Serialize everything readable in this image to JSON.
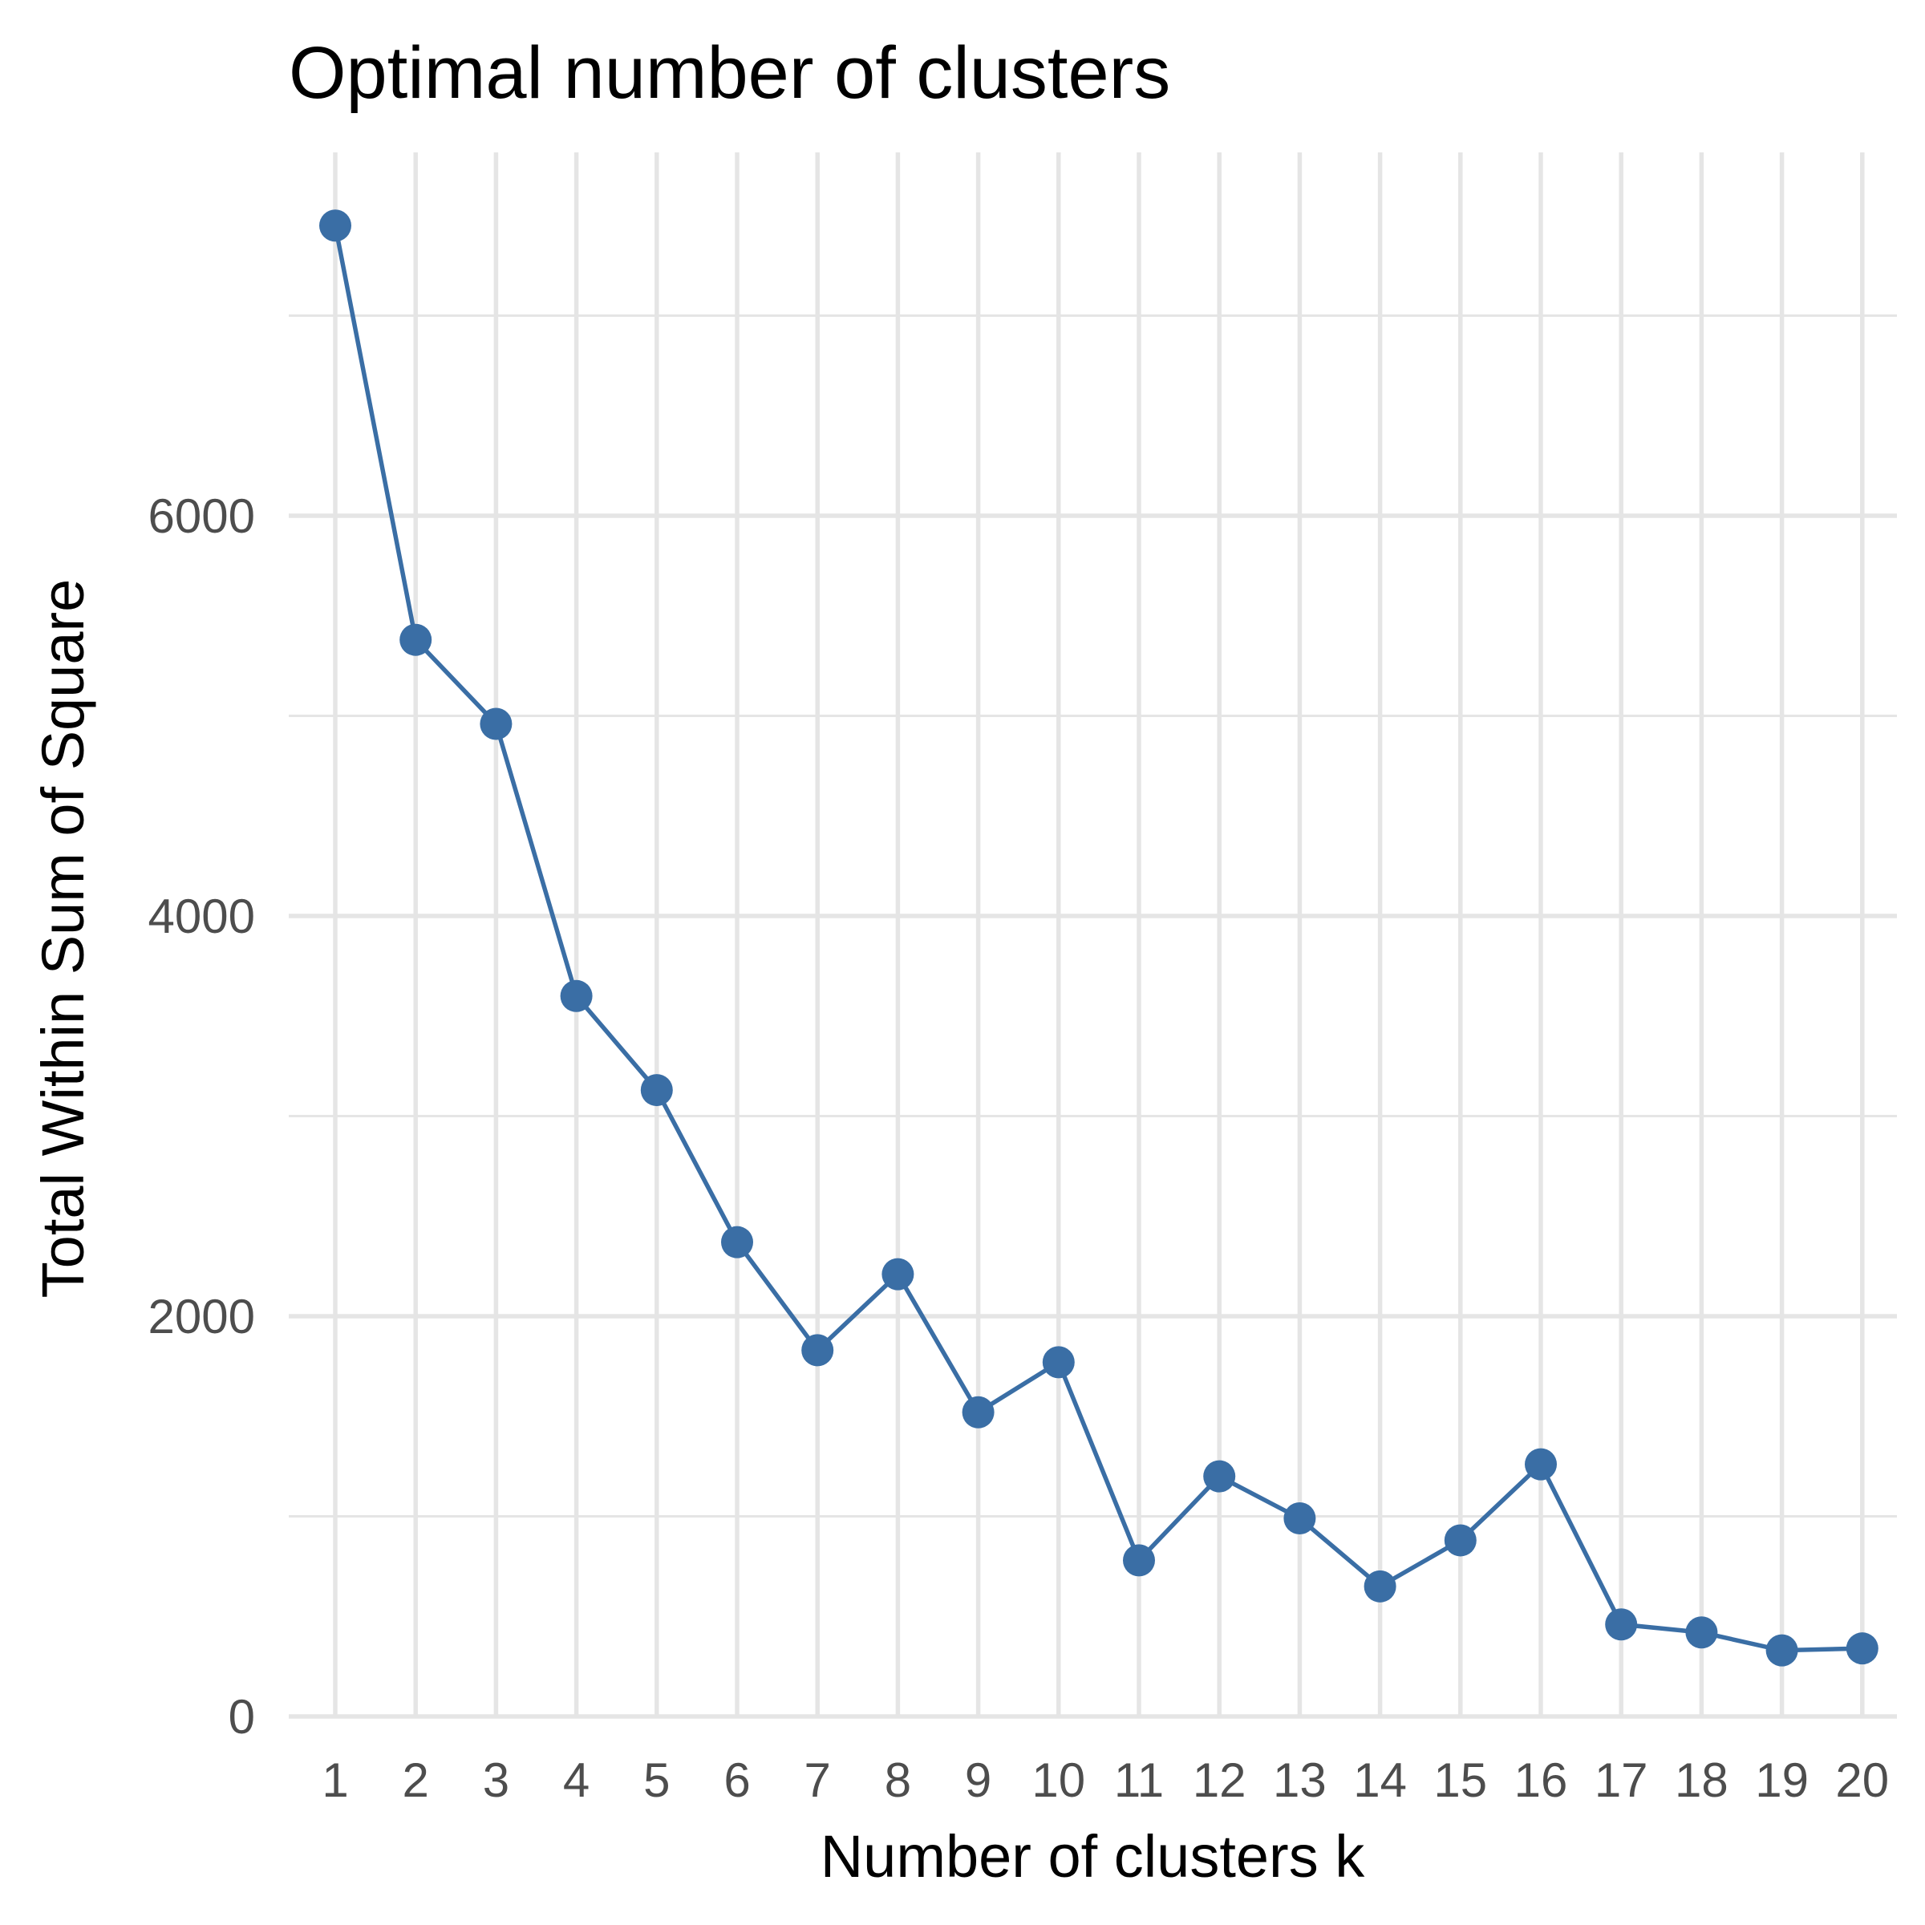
{
  "chart_data": {
    "type": "line",
    "title": "Optimal number of clusters",
    "xlabel": "Number of clusters k",
    "ylabel": "Total Within Sum of Square",
    "x": [
      1,
      2,
      3,
      4,
      5,
      6,
      7,
      8,
      9,
      10,
      11,
      12,
      13,
      14,
      15,
      16,
      17,
      18,
      19,
      20
    ],
    "x_tick_labels": [
      "1",
      "2",
      "3",
      "4",
      "5",
      "6",
      "7",
      "8",
      "9",
      "10",
      "11",
      "12",
      "13",
      "14",
      "15",
      "16",
      "17",
      "18",
      "19",
      "20"
    ],
    "y_ticks": [
      0,
      2000,
      4000,
      6000
    ],
    "y_tick_labels": [
      "0",
      "2000",
      "4000",
      "6000"
    ],
    "ylim": [
      0,
      7600
    ],
    "xlim": [
      0.4,
      20.6
    ],
    "grid": true,
    "series": [
      {
        "values": [
          7450,
          5380,
          4960,
          3600,
          3130,
          2370,
          1830,
          2210,
          1520,
          1770,
          780,
          1200,
          990,
          650,
          880,
          1260,
          460,
          420,
          330,
          340
        ],
        "color": "#3a6ea5"
      }
    ]
  }
}
